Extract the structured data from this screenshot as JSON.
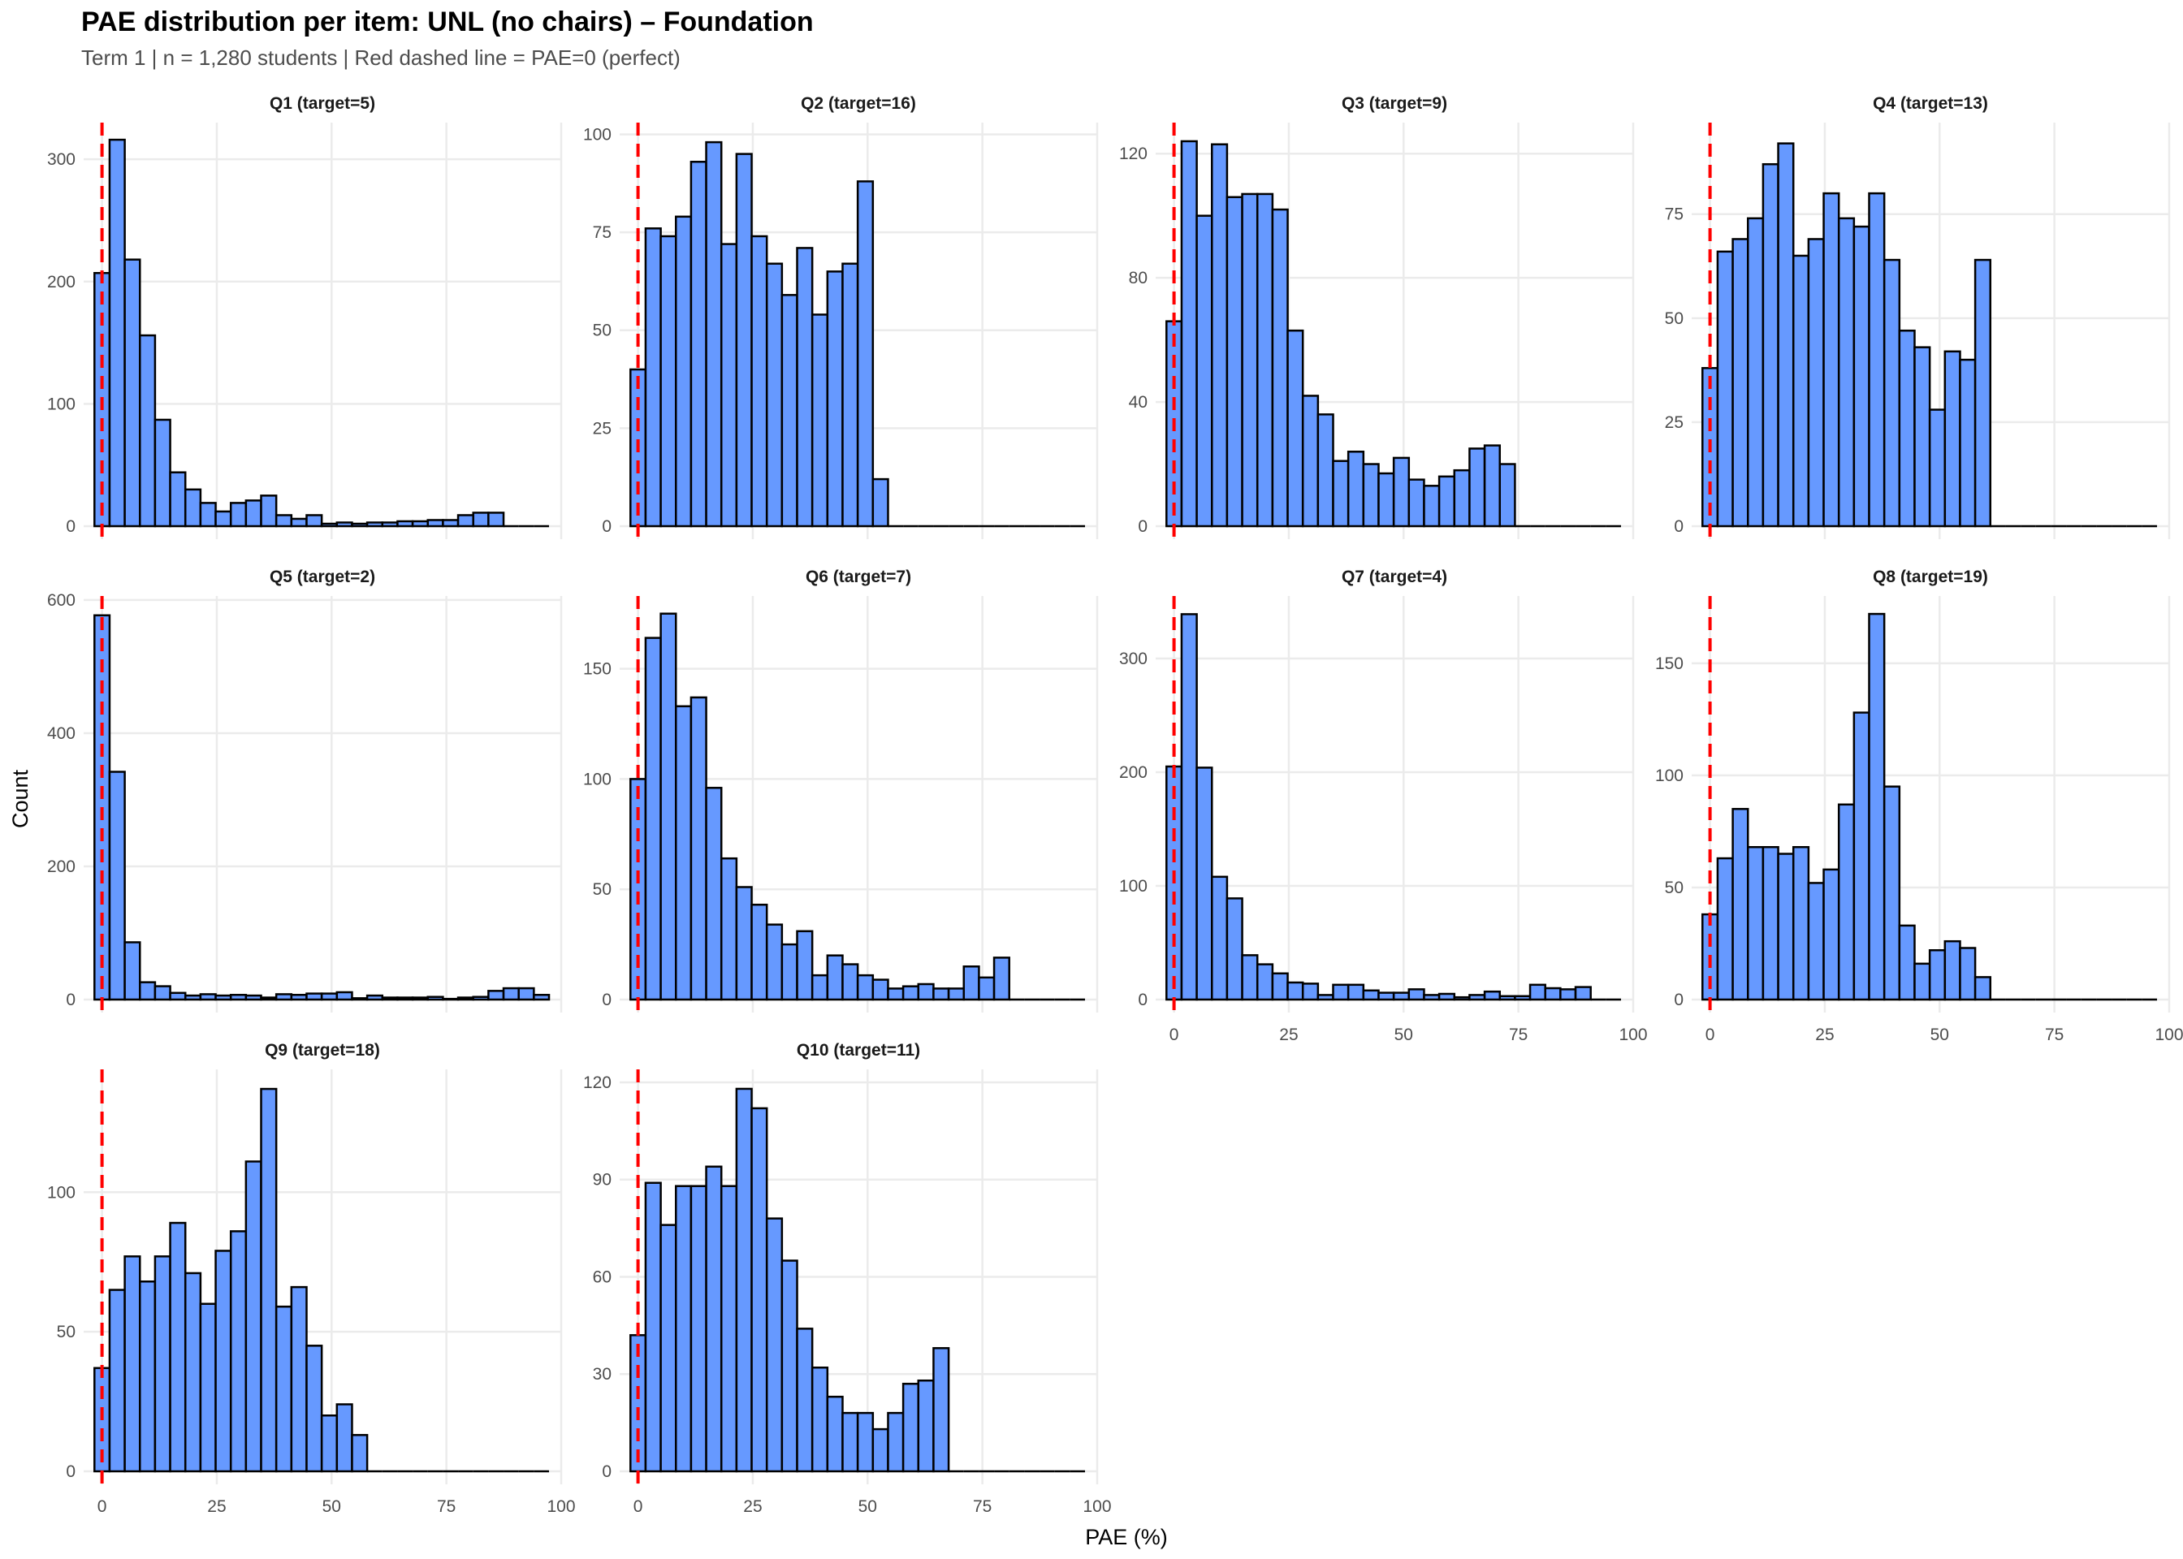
{
  "header": {
    "title": "PAE distribution per item: UNL (no chairs) – Foundation",
    "subtitle": "Term 1 | n = 1,280 students | Red dashed line = PAE=0 (perfect)"
  },
  "chart_data": {
    "type": "bar",
    "subtype": "histogram-facets",
    "title": "PAE distribution per item: UNL (no chairs) – Foundation",
    "subtitle": "Term 1 | n = 1,280 students | Red dashed line = PAE=0 (perfect)",
    "xlabel": "PAE (%)",
    "ylabel": "Count",
    "x_range": [
      -4,
      100
    ],
    "x_ticks": [
      0,
      25,
      50,
      75,
      100
    ],
    "bins": 30,
    "bin_start": -1.65,
    "bin_width": 3.3,
    "reference_line": {
      "x": 0,
      "style": "dashed",
      "label": "PAE=0 (perfect)"
    },
    "colors": {
      "bar_fill": "#6699FF",
      "bar_stroke": "#000000",
      "ref_line": "#FF0000",
      "grid": "#EBEBEB"
    },
    "grid": true,
    "legend": "none",
    "panels": [
      {
        "name": "Q1",
        "label": "Q1 (target=5)",
        "y_ticks": [
          0,
          100,
          200,
          300
        ],
        "ylim": [
          0,
          330
        ],
        "show_x_ticks": false,
        "counts": [
          207,
          316,
          218,
          156,
          87,
          44,
          30,
          19,
          12,
          19,
          21,
          25,
          9,
          6,
          9,
          2,
          3,
          2,
          3,
          3,
          4,
          4,
          5,
          5,
          9,
          11,
          11,
          0,
          0,
          0
        ]
      },
      {
        "name": "Q2",
        "label": "Q2 (target=16)",
        "y_ticks": [
          0,
          25,
          50,
          75,
          100
        ],
        "ylim": [
          0,
          103
        ],
        "show_x_ticks": false,
        "counts": [
          40,
          76,
          74,
          79,
          93,
          98,
          72,
          95,
          74,
          67,
          59,
          71,
          54,
          65,
          67,
          88,
          12,
          0,
          0,
          0,
          0,
          0,
          0,
          0,
          0,
          0,
          0,
          0,
          0,
          0
        ]
      },
      {
        "name": "Q3",
        "label": "Q3 (target=9)",
        "y_ticks": [
          0,
          40,
          80,
          120
        ],
        "ylim": [
          0,
          130
        ],
        "show_x_ticks": false,
        "counts": [
          66,
          124,
          100,
          123,
          106,
          107,
          107,
          102,
          63,
          42,
          36,
          21,
          24,
          20,
          17,
          22,
          15,
          13,
          16,
          18,
          25,
          26,
          20,
          0,
          0,
          0,
          0,
          0,
          0,
          0
        ]
      },
      {
        "name": "Q4",
        "label": "Q4 (target=13)",
        "y_ticks": [
          0,
          25,
          50,
          75
        ],
        "ylim": [
          0,
          97
        ],
        "show_x_ticks": false,
        "counts": [
          38,
          66,
          69,
          74,
          87,
          92,
          65,
          69,
          80,
          74,
          72,
          80,
          64,
          47,
          43,
          28,
          42,
          40,
          64,
          0,
          0,
          0,
          0,
          0,
          0,
          0,
          0,
          0,
          0,
          0
        ]
      },
      {
        "name": "Q5",
        "label": "Q5 (target=2)",
        "y_ticks": [
          0,
          200,
          400,
          600
        ],
        "ylim": [
          0,
          606
        ],
        "show_x_ticks": false,
        "counts": [
          577,
          342,
          86,
          26,
          20,
          10,
          6,
          8,
          6,
          7,
          6,
          3,
          8,
          7,
          9,
          9,
          11,
          2,
          6,
          3,
          3,
          3,
          4,
          1,
          3,
          4,
          13,
          17,
          17,
          7
        ]
      },
      {
        "name": "Q6",
        "label": "Q6 (target=7)",
        "y_ticks": [
          0,
          50,
          100,
          150
        ],
        "ylim": [
          0,
          183
        ],
        "show_x_ticks": false,
        "counts": [
          100,
          164,
          175,
          133,
          137,
          96,
          64,
          51,
          43,
          34,
          25,
          31,
          11,
          20,
          16,
          11,
          9,
          5,
          6,
          7,
          5,
          5,
          15,
          10,
          19,
          0,
          0,
          0,
          0,
          0
        ]
      },
      {
        "name": "Q7",
        "label": "Q7 (target=4)",
        "y_ticks": [
          0,
          100,
          200,
          300
        ],
        "ylim": [
          0,
          355
        ],
        "show_x_ticks": true,
        "counts": [
          205,
          339,
          204,
          108,
          89,
          39,
          31,
          23,
          15,
          14,
          4,
          13,
          13,
          8,
          6,
          6,
          9,
          4,
          5,
          2,
          4,
          7,
          3,
          3,
          13,
          10,
          9,
          11,
          0,
          0
        ]
      },
      {
        "name": "Q8",
        "label": "Q8 (target=19)",
        "y_ticks": [
          0,
          50,
          100,
          150
        ],
        "ylim": [
          0,
          180
        ],
        "show_x_ticks": true,
        "counts": [
          38,
          63,
          85,
          68,
          68,
          65,
          68,
          52,
          58,
          87,
          128,
          172,
          95,
          33,
          16,
          22,
          26,
          23,
          10,
          0,
          0,
          0,
          0,
          0,
          0,
          0,
          0,
          0,
          0,
          0
        ]
      },
      {
        "name": "Q9",
        "label": "Q9 (target=18)",
        "y_ticks": [
          0,
          50,
          100
        ],
        "ylim": [
          0,
          144
        ],
        "show_x_ticks": true,
        "counts": [
          37,
          65,
          77,
          68,
          77,
          89,
          71,
          60,
          79,
          86,
          111,
          137,
          59,
          66,
          45,
          20,
          24,
          13,
          0,
          0,
          0,
          0,
          0,
          0,
          0,
          0,
          0,
          0,
          0,
          0
        ]
      },
      {
        "name": "Q10",
        "label": "Q10 (target=11)",
        "y_ticks": [
          0,
          30,
          60,
          90,
          120
        ],
        "ylim": [
          0,
          124
        ],
        "show_x_ticks": true,
        "counts": [
          42,
          89,
          76,
          88,
          88,
          94,
          88,
          118,
          112,
          78,
          65,
          44,
          32,
          23,
          18,
          18,
          13,
          18,
          27,
          28,
          38,
          0,
          0,
          0,
          0,
          0,
          0,
          0,
          0,
          0
        ]
      }
    ]
  }
}
